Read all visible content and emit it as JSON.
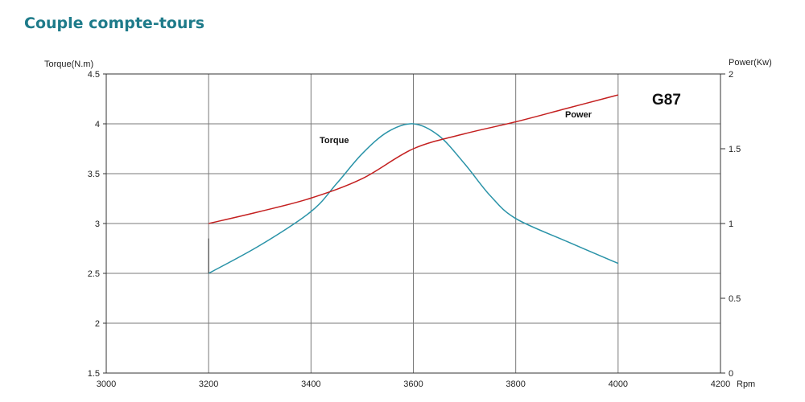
{
  "page": {
    "title": "Couple compte-tours"
  },
  "chart_data": {
    "type": "line",
    "title": "Couple compte-tours",
    "model_label": "G87",
    "xlabel": "Rpm",
    "ylabel_left": "Torque(N.m)",
    "ylabel_right": "Power(Kw)",
    "xlim": [
      3000,
      4200
    ],
    "ylim_left": [
      1.5,
      4.5
    ],
    "ylim_right": [
      0,
      2
    ],
    "x_ticks": [
      "3000",
      "3200",
      "3400",
      "3600",
      "3800",
      "4000",
      "4200"
    ],
    "y_left_ticks": [
      "1.5",
      "2",
      "2.5",
      "3",
      "3.5",
      "4",
      "4.5"
    ],
    "y_right_ticks": [
      "0",
      "0.5",
      "1",
      "1.5",
      "2"
    ],
    "grid": true,
    "series": [
      {
        "name": "Torque",
        "axis": "left",
        "color": "#2a93a8",
        "x": [
          3200,
          3300,
          3400,
          3450,
          3500,
          3550,
          3600,
          3650,
          3700,
          3750,
          3800,
          3900,
          4000
        ],
        "y": [
          2.5,
          2.78,
          3.12,
          3.4,
          3.7,
          3.92,
          4.0,
          3.88,
          3.6,
          3.28,
          3.05,
          2.82,
          2.6
        ]
      },
      {
        "name": "Power",
        "axis": "right",
        "color": "#c42020",
        "x": [
          3200,
          3300,
          3400,
          3500,
          3600,
          3700,
          3800,
          3900,
          4000
        ],
        "y": [
          1.0,
          1.08,
          1.17,
          1.3,
          1.5,
          1.6,
          1.68,
          1.77,
          1.86
        ]
      }
    ]
  }
}
